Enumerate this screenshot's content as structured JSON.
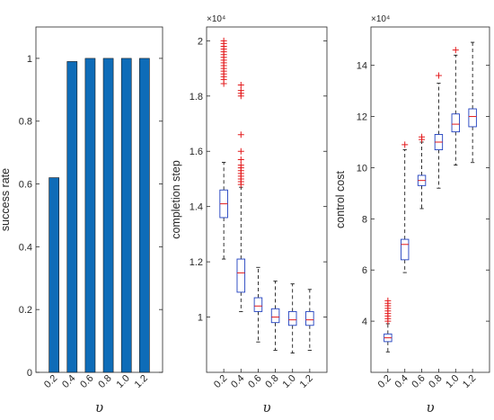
{
  "chart_data": [
    {
      "type": "bar",
      "categories": [
        "0.2",
        "0.4",
        "0.6",
        "0.8",
        "1.0",
        "1.2"
      ],
      "values": [
        0.62,
        0.99,
        1.0,
        1.0,
        1.0,
        1.0
      ],
      "ylabel": "success rate",
      "xlabel": "υ",
      "ylim": [
        0,
        1.1
      ],
      "yticks": [
        "0",
        "0.2",
        "0.4",
        "0.6",
        "0.8",
        "1"
      ],
      "bar_color": "#0e6cb8"
    },
    {
      "type": "box",
      "categories": [
        "0.2",
        "0.4",
        "0.6",
        "0.8",
        "1.0",
        "1.2"
      ],
      "ylabel": "completion step",
      "xlabel": "υ",
      "exponent_label": "×10⁴",
      "ylim": [
        0.8,
        2.05
      ],
      "yticks": [
        "1",
        "1.2",
        "1.4",
        "1.6",
        "1.8",
        "2"
      ],
      "boxes": [
        {
          "min": 1.21,
          "q1": 1.36,
          "median": 1.41,
          "q3": 1.46,
          "max": 1.56,
          "outliers": [
            1.845,
            1.86,
            1.87,
            1.88,
            1.89,
            1.9,
            1.91,
            1.92,
            1.93,
            1.94,
            1.95,
            1.96,
            1.97,
            1.98,
            1.99,
            2.0
          ]
        },
        {
          "min": 1.02,
          "q1": 1.09,
          "median": 1.16,
          "q3": 1.21,
          "max": 1.47,
          "outliers": [
            1.48,
            1.49,
            1.5,
            1.51,
            1.52,
            1.53,
            1.54,
            1.55,
            1.57,
            1.6,
            1.66,
            1.8,
            1.81,
            1.82,
            1.84
          ]
        },
        {
          "min": 0.91,
          "q1": 1.02,
          "median": 1.04,
          "q3": 1.07,
          "max": 1.18,
          "outliers": []
        },
        {
          "min": 0.88,
          "q1": 0.98,
          "median": 1.0,
          "q3": 1.03,
          "max": 1.13,
          "outliers": []
        },
        {
          "min": 0.87,
          "q1": 0.97,
          "median": 0.99,
          "q3": 1.02,
          "max": 1.12,
          "outliers": []
        },
        {
          "min": 0.88,
          "q1": 0.97,
          "median": 0.99,
          "q3": 1.02,
          "max": 1.1,
          "outliers": []
        }
      ]
    },
    {
      "type": "box",
      "categories": [
        "0.2",
        "0.4",
        "0.6",
        "0.8",
        "1.0",
        "1.2"
      ],
      "ylabel": "control cost",
      "xlabel": "υ",
      "exponent_label": "×10⁴",
      "ylim": [
        2,
        15.5
      ],
      "yticks": [
        "4",
        "6",
        "8",
        "10",
        "12",
        "14"
      ],
      "boxes": [
        {
          "min": 2.8,
          "q1": 3.2,
          "median": 3.35,
          "q3": 3.5,
          "max": 3.9,
          "outliers": [
            4.0,
            4.1,
            4.2,
            4.3,
            4.4,
            4.5,
            4.6,
            4.7,
            4.8
          ]
        },
        {
          "min": 5.9,
          "q1": 6.4,
          "median": 7.0,
          "q3": 7.2,
          "max": 10.7,
          "outliers": [
            10.9
          ]
        },
        {
          "min": 8.4,
          "q1": 9.3,
          "median": 9.5,
          "q3": 9.7,
          "max": 11.0,
          "outliers": [
            11.1,
            11.2
          ]
        },
        {
          "min": 9.2,
          "q1": 10.7,
          "median": 11.0,
          "q3": 11.3,
          "max": 13.3,
          "outliers": [
            13.6
          ]
        },
        {
          "min": 10.1,
          "q1": 11.4,
          "median": 11.7,
          "q3": 12.1,
          "max": 14.4,
          "outliers": [
            14.6
          ]
        },
        {
          "min": 10.2,
          "q1": 11.6,
          "median": 12.0,
          "q3": 12.3,
          "max": 14.9,
          "outliers": []
        }
      ]
    }
  ]
}
